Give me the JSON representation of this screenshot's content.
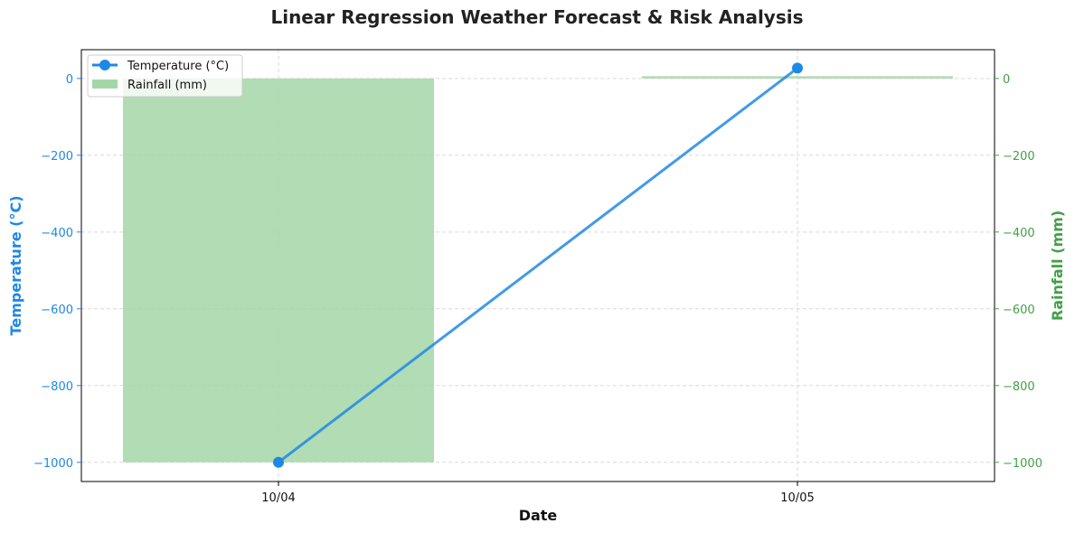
{
  "chart_data": {
    "type": "line",
    "title": "Linear Regression Weather Forecast & Risk Analysis",
    "xlabel": "Date",
    "ylabel_left": "Temperature (°C)",
    "ylabel_right": "Rainfall (mm)",
    "categories": [
      "10/04",
      "10/05"
    ],
    "ylim_left": [
      -1050,
      75
    ],
    "ylim_right": [
      -1050,
      75
    ],
    "yticks_left": [
      0,
      -200,
      -400,
      -600,
      -800,
      -1000
    ],
    "yticks_right": [
      0,
      -200,
      -400,
      -600,
      -800,
      -1000
    ],
    "tick_labels_left": [
      "0",
      "−200",
      "−400",
      "−600",
      "−800",
      "−1000"
    ],
    "tick_labels_right": [
      "0",
      "−200",
      "−400",
      "−600",
      "−800",
      "−1000"
    ],
    "grid": true,
    "legend_position": "top-left",
    "series": [
      {
        "name": "Temperature (°C)",
        "kind": "line",
        "axis": "left",
        "color": "#1e88e5",
        "values": [
          -1000,
          27
        ]
      },
      {
        "name": "Rainfall (mm)",
        "kind": "bar",
        "axis": "right",
        "color": "#a5d6a7",
        "values": [
          -1000,
          6
        ]
      }
    ],
    "colors": {
      "left_axis": "#1e88e5",
      "right_axis": "#43a047"
    }
  }
}
